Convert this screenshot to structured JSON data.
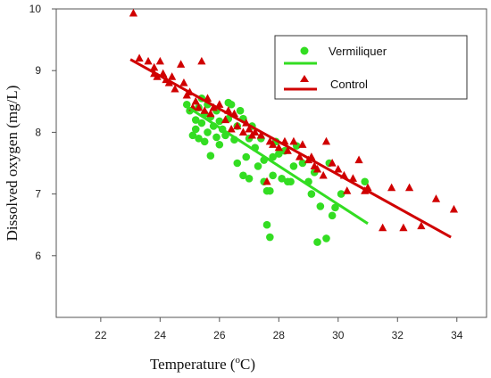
{
  "chart_data": {
    "type": "scatter",
    "xlabel": "Temperature (",
    "xlabel_sup": "o",
    "xlabel_unit": "C)",
    "ylabel": "Dissolved oxygen (mg/L)",
    "xlim": [
      20.5,
      35.0
    ],
    "ylim": [
      5.0,
      10.0
    ],
    "xticks": [
      22,
      24,
      26,
      28,
      30,
      32,
      34
    ],
    "yticks": [
      6,
      7,
      8,
      9,
      10
    ],
    "grid": false,
    "legend_position": "top-right",
    "series": [
      {
        "name": "Vermiliquer",
        "color": "#33dd22",
        "marker": "circle",
        "fit_line": {
          "x": [
            24.8,
            31.0
          ],
          "y": [
            8.45,
            6.52
          ]
        },
        "points": [
          [
            24.9,
            8.45
          ],
          [
            25.0,
            8.35
          ],
          [
            25.1,
            7.95
          ],
          [
            25.2,
            8.2
          ],
          [
            25.2,
            8.05
          ],
          [
            25.3,
            8.4
          ],
          [
            25.3,
            7.9
          ],
          [
            25.4,
            8.55
          ],
          [
            25.4,
            8.15
          ],
          [
            25.5,
            7.85
          ],
          [
            25.5,
            8.3
          ],
          [
            25.6,
            8.45
          ],
          [
            25.6,
            8.0
          ],
          [
            25.7,
            7.62
          ],
          [
            25.7,
            8.25
          ],
          [
            25.8,
            8.1
          ],
          [
            25.9,
            8.35
          ],
          [
            25.9,
            7.92
          ],
          [
            26.0,
            8.18
          ],
          [
            26.0,
            7.8
          ],
          [
            26.1,
            8.05
          ],
          [
            26.2,
            7.95
          ],
          [
            26.3,
            8.48
          ],
          [
            26.3,
            8.22
          ],
          [
            26.4,
            8.45
          ],
          [
            26.5,
            7.88
          ],
          [
            26.6,
            8.1
          ],
          [
            26.6,
            7.5
          ],
          [
            26.7,
            8.35
          ],
          [
            26.8,
            7.3
          ],
          [
            26.8,
            8.22
          ],
          [
            26.9,
            7.6
          ],
          [
            27.0,
            7.25
          ],
          [
            27.0,
            7.9
          ],
          [
            27.1,
            8.1
          ],
          [
            27.2,
            7.75
          ],
          [
            27.3,
            7.45
          ],
          [
            27.4,
            7.9
          ],
          [
            27.5,
            7.2
          ],
          [
            27.5,
            7.55
          ],
          [
            27.6,
            7.05
          ],
          [
            27.6,
            6.5
          ],
          [
            27.7,
            7.05
          ],
          [
            27.7,
            6.3
          ],
          [
            27.8,
            7.3
          ],
          [
            27.8,
            7.6
          ],
          [
            27.9,
            7.85
          ],
          [
            28.0,
            7.65
          ],
          [
            28.1,
            7.25
          ],
          [
            28.2,
            7.7
          ],
          [
            28.3,
            7.2
          ],
          [
            28.4,
            7.2
          ],
          [
            28.5,
            7.45
          ],
          [
            28.6,
            7.78
          ],
          [
            28.8,
            7.5
          ],
          [
            29.0,
            7.2
          ],
          [
            29.1,
            7.0
          ],
          [
            29.2,
            7.35
          ],
          [
            29.3,
            6.22
          ],
          [
            29.4,
            6.8
          ],
          [
            29.6,
            6.28
          ],
          [
            29.7,
            7.5
          ],
          [
            29.8,
            6.65
          ],
          [
            29.9,
            6.78
          ],
          [
            30.1,
            7.0
          ],
          [
            30.9,
            7.2
          ]
        ]
      },
      {
        "name": "Control",
        "color": "#d00000",
        "marker": "triangle",
        "fit_line": {
          "x": [
            23.0,
            33.8
          ],
          "y": [
            9.18,
            6.3
          ]
        },
        "points": [
          [
            23.1,
            9.93
          ],
          [
            23.3,
            9.2
          ],
          [
            23.6,
            9.15
          ],
          [
            23.8,
            9.05
          ],
          [
            23.8,
            8.95
          ],
          [
            23.9,
            8.9
          ],
          [
            24.0,
            9.15
          ],
          [
            24.1,
            8.95
          ],
          [
            24.2,
            8.85
          ],
          [
            24.3,
            8.8
          ],
          [
            24.4,
            8.9
          ],
          [
            24.5,
            8.7
          ],
          [
            24.7,
            9.1
          ],
          [
            24.8,
            8.8
          ],
          [
            24.9,
            8.6
          ],
          [
            25.0,
            8.65
          ],
          [
            25.1,
            8.4
          ],
          [
            25.2,
            8.5
          ],
          [
            25.3,
            8.4
          ],
          [
            25.4,
            9.15
          ],
          [
            25.5,
            8.35
          ],
          [
            25.6,
            8.55
          ],
          [
            25.7,
            8.3
          ],
          [
            25.8,
            8.4
          ],
          [
            26.0,
            8.45
          ],
          [
            26.2,
            8.2
          ],
          [
            26.3,
            8.35
          ],
          [
            26.4,
            8.05
          ],
          [
            26.5,
            8.3
          ],
          [
            26.6,
            8.1
          ],
          [
            26.8,
            8.0
          ],
          [
            26.9,
            8.15
          ],
          [
            27.0,
            8.05
          ],
          [
            27.1,
            7.95
          ],
          [
            27.2,
            8.0
          ],
          [
            27.4,
            7.95
          ],
          [
            27.6,
            7.2
          ],
          [
            27.7,
            7.85
          ],
          [
            27.8,
            7.8
          ],
          [
            28.0,
            7.75
          ],
          [
            28.2,
            7.85
          ],
          [
            28.3,
            7.7
          ],
          [
            28.5,
            7.85
          ],
          [
            28.7,
            7.6
          ],
          [
            28.8,
            7.8
          ],
          [
            29.0,
            7.55
          ],
          [
            29.1,
            7.6
          ],
          [
            29.2,
            7.45
          ],
          [
            29.3,
            7.4
          ],
          [
            29.5,
            7.3
          ],
          [
            29.6,
            7.85
          ],
          [
            29.8,
            7.5
          ],
          [
            30.0,
            7.4
          ],
          [
            30.2,
            7.3
          ],
          [
            30.3,
            7.05
          ],
          [
            30.5,
            7.25
          ],
          [
            30.7,
            7.55
          ],
          [
            30.9,
            7.05
          ],
          [
            31.0,
            7.1
          ],
          [
            31.5,
            6.45
          ],
          [
            31.8,
            7.1
          ],
          [
            32.2,
            6.45
          ],
          [
            32.4,
            7.1
          ],
          [
            32.8,
            6.48
          ],
          [
            33.3,
            6.92
          ],
          [
            33.9,
            6.75
          ]
        ]
      }
    ]
  }
}
